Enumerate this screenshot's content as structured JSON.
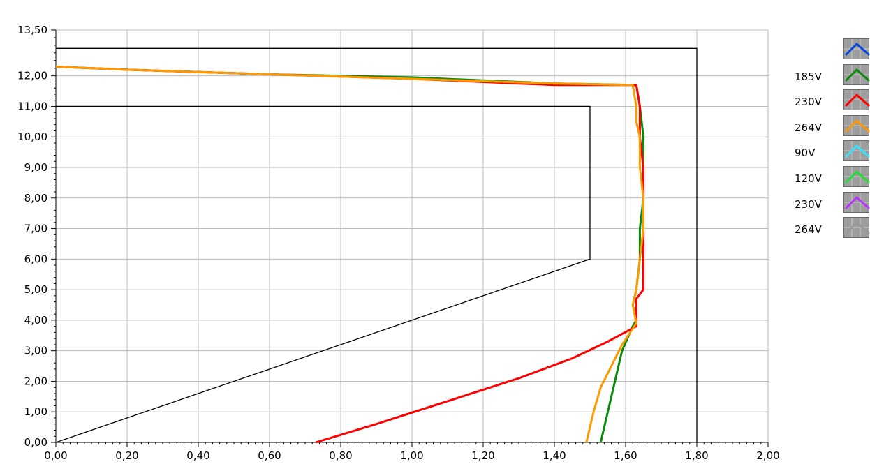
{
  "chart_data": {
    "type": "line",
    "title": "",
    "xlabel": "",
    "ylabel": "",
    "xlim": [
      0,
      2.0
    ],
    "ylim": [
      0,
      13.5
    ],
    "grid": true,
    "legend_position": "right",
    "x_ticks": [
      "0,00",
      "0,20",
      "0,40",
      "0,60",
      "0,80",
      "1,00",
      "1,20",
      "1,40",
      "1,60",
      "1,80",
      "2,00"
    ],
    "y_ticks": [
      "0,00",
      "1,00",
      "2,00",
      "3,00",
      "4,00",
      "5,00",
      "6,00",
      "7,00",
      "8,00",
      "9,00",
      "10,00",
      "11,00",
      "12,00",
      "13,50"
    ],
    "series": [
      {
        "color": "#0044dd",
        "points": []
      },
      {
        "name": "185V",
        "color": "#0a8a0a",
        "points": [
          [
            1.53,
            0
          ],
          [
            1.55,
            1
          ],
          [
            1.57,
            2
          ],
          [
            1.59,
            3
          ],
          [
            1.62,
            3.8
          ],
          [
            1.63,
            4.0
          ],
          [
            1.62,
            4.5
          ],
          [
            1.63,
            5.0
          ],
          [
            1.64,
            6.0
          ],
          [
            1.64,
            7.0
          ],
          [
            1.65,
            8.0
          ],
          [
            1.65,
            9.0
          ],
          [
            1.65,
            10.0
          ],
          [
            1.64,
            11.0
          ],
          [
            1.63,
            11.7
          ],
          [
            1.4,
            11.75
          ],
          [
            1.0,
            11.95
          ],
          [
            0.6,
            12.05
          ],
          [
            0.2,
            12.2
          ],
          [
            0.0,
            12.3
          ]
        ]
      },
      {
        "name": "230V",
        "color": "#ff0000",
        "points": [
          [
            0.73,
            0
          ],
          [
            0.9,
            0.6
          ],
          [
            1.1,
            1.35
          ],
          [
            1.3,
            2.1
          ],
          [
            1.45,
            2.75
          ],
          [
            1.55,
            3.3
          ],
          [
            1.63,
            3.8
          ],
          [
            1.63,
            4.2
          ],
          [
            1.63,
            4.7
          ],
          [
            1.65,
            5.0
          ],
          [
            1.65,
            6.0
          ],
          [
            1.65,
            7.0
          ],
          [
            1.65,
            8.0
          ],
          [
            1.65,
            9.0
          ],
          [
            1.64,
            10.0
          ],
          [
            1.64,
            11.0
          ],
          [
            1.63,
            11.7
          ],
          [
            1.4,
            11.7
          ],
          [
            1.0,
            11.9
          ],
          [
            0.6,
            12.05
          ],
          [
            0.2,
            12.2
          ],
          [
            0.0,
            12.3
          ]
        ]
      },
      {
        "name": "264V",
        "color": "#ff9900",
        "points": [
          [
            1.49,
            0
          ],
          [
            1.51,
            1
          ],
          [
            1.53,
            1.8
          ],
          [
            1.56,
            2.5
          ],
          [
            1.59,
            3.2
          ],
          [
            1.63,
            3.9
          ],
          [
            1.62,
            4.5
          ],
          [
            1.63,
            5.0
          ],
          [
            1.64,
            6.0
          ],
          [
            1.65,
            7.0
          ],
          [
            1.65,
            8.0
          ],
          [
            1.64,
            9.0
          ],
          [
            1.64,
            10.0
          ],
          [
            1.63,
            10.5
          ],
          [
            1.63,
            11.0
          ],
          [
            1.62,
            11.7
          ],
          [
            1.4,
            11.75
          ],
          [
            1.0,
            11.9
          ],
          [
            0.6,
            12.05
          ],
          [
            0.2,
            12.2
          ],
          [
            0.0,
            12.3
          ]
        ]
      },
      {
        "name": "90V",
        "color": "#33e6ff",
        "points": []
      },
      {
        "name": "120V",
        "color": "#22dd33",
        "points": []
      },
      {
        "name": "230V",
        "color": "#bb33ff",
        "points": []
      },
      {
        "name": "264V",
        "color": "#999999",
        "points": []
      }
    ],
    "limit_lines": [
      {
        "color": "#000000",
        "points": [
          [
            0.0,
            12.9
          ],
          [
            1.8,
            12.9
          ],
          [
            1.8,
            0.0
          ]
        ]
      },
      {
        "color": "#000000",
        "points": [
          [
            0.0,
            0.0
          ],
          [
            1.5,
            6.0
          ],
          [
            1.5,
            11.0
          ],
          [
            0.0,
            11.0
          ]
        ]
      }
    ]
  }
}
